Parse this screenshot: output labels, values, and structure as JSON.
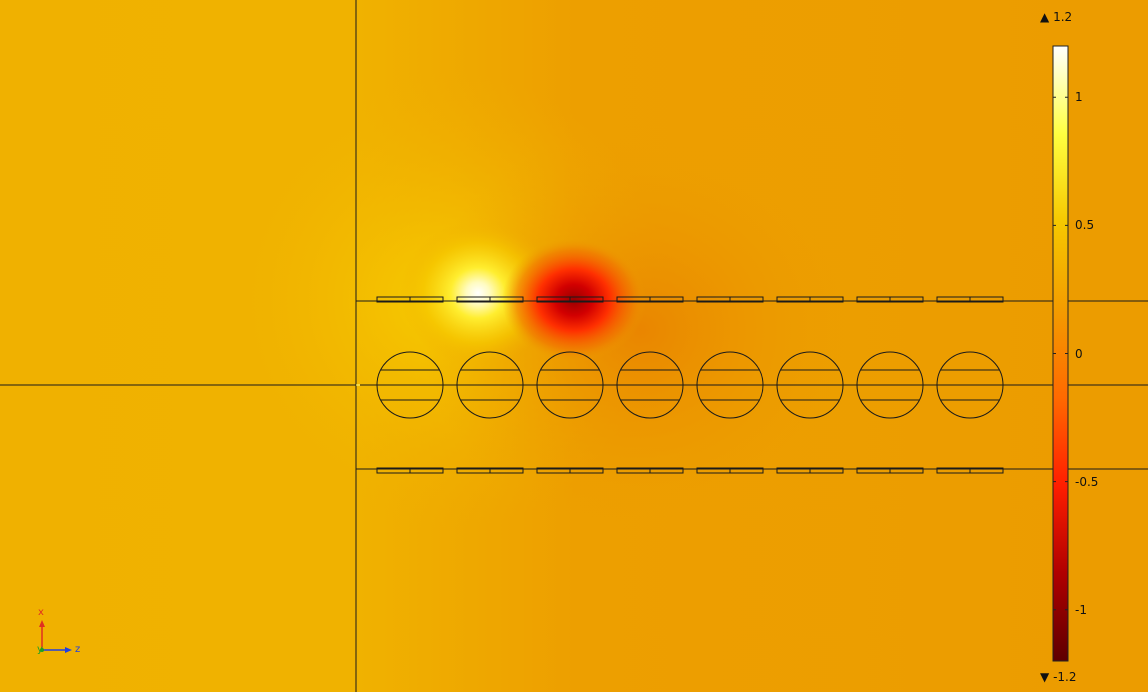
{
  "colorbar": {
    "max_label": "1.2",
    "min_label": "-1.2",
    "max_value": 1.2,
    "min_value": -1.2,
    "ticks": [
      {
        "value": 1,
        "label": "1"
      },
      {
        "value": 0.5,
        "label": "0.5"
      },
      {
        "value": 0,
        "label": "0"
      },
      {
        "value": -0.5,
        "label": "-0.5"
      },
      {
        "value": -1,
        "label": "-1"
      }
    ],
    "max_arrow_icon": "up-triangle",
    "min_arrow_icon": "down-triangle",
    "colormap": [
      "#5e0000",
      "#b00000",
      "#ff1e00",
      "#ff6a00",
      "#f39c00",
      "#f6c800",
      "#ffff40",
      "#ffffff"
    ]
  },
  "field": {
    "background_color": "#ec9f00",
    "left_region_color": "#f0b000"
  },
  "geometry": {
    "rod_count": 8,
    "top_strip_count": 8,
    "bottom_strip_count": 8
  },
  "axes_triad": {
    "x_label": "x",
    "y_label": "y",
    "z_label": "z",
    "x_color": "#e03020",
    "y_color": "#20a020",
    "z_color": "#2040e0"
  }
}
